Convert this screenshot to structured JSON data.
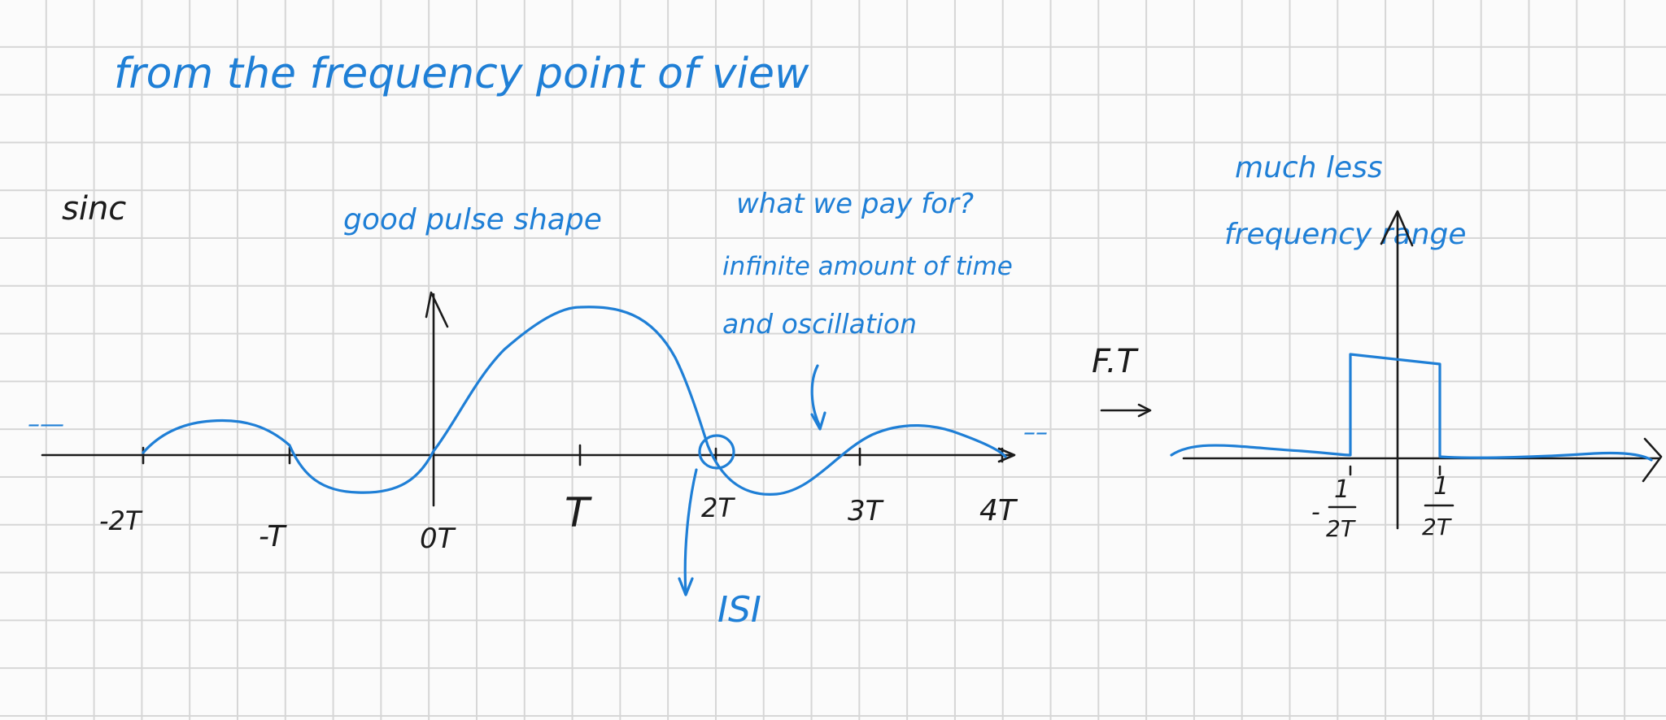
{
  "notes": {
    "heading": "from the frequency point of view",
    "sinc_label": "sinc",
    "good_pulse": "good pulse shape",
    "what_we_pay": "what we pay for?",
    "infinite_time": "infinite amount of time",
    "oscillation": "and oscillation",
    "isi": "ISI",
    "ft_label": "F.T",
    "much_less": "much less",
    "freq_range": "frequency range"
  },
  "time_axis": {
    "ticks": [
      "-2T",
      "-T",
      "0T",
      "T",
      "2T",
      "3T",
      "4T"
    ],
    "left_dots": "–—",
    "right_dots": "––"
  },
  "freq_axis": {
    "left_tick": "-1/2T",
    "right_tick": "1/2T",
    "left_num": "1",
    "left_den": "2T",
    "left_sign": "-",
    "right_num": "1",
    "right_den": "2T"
  },
  "colors": {
    "ink_blue": "#1f7fd6",
    "ink_black": "#1b1b1b",
    "grid": "#d6d6d6"
  }
}
